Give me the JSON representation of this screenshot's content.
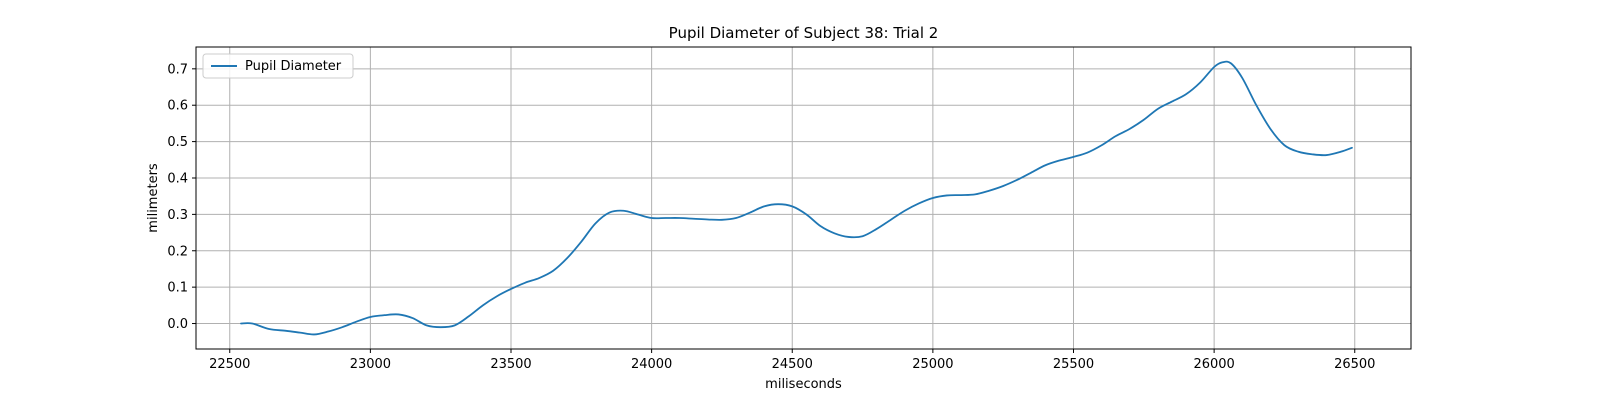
{
  "chart_data": {
    "type": "line",
    "title": "Pupil Diameter of Subject 38: Trial 2",
    "xlabel": "miliseconds",
    "ylabel": "milimeters",
    "xlim": [
      22380,
      26700
    ],
    "ylim": [
      -0.07,
      0.76
    ],
    "xticks": [
      22500,
      23000,
      23500,
      24000,
      24500,
      25000,
      25500,
      26000,
      26500
    ],
    "yticks": [
      0.0,
      0.1,
      0.2,
      0.3,
      0.4,
      0.5,
      0.6,
      0.7
    ],
    "grid": true,
    "legend_position": "top-left",
    "series": [
      {
        "name": "Pupil Diameter",
        "color": "#1f77b4",
        "x": [
          22540,
          22580,
          22640,
          22700,
          22750,
          22800,
          22850,
          22900,
          22950,
          23000,
          23050,
          23100,
          23150,
          23200,
          23250,
          23300,
          23350,
          23400,
          23450,
          23500,
          23550,
          23600,
          23650,
          23700,
          23750,
          23800,
          23850,
          23900,
          23950,
          24000,
          24050,
          24100,
          24150,
          24200,
          24250,
          24300,
          24350,
          24400,
          24450,
          24500,
          24550,
          24600,
          24650,
          24700,
          24750,
          24800,
          24850,
          24900,
          24950,
          25000,
          25050,
          25100,
          25150,
          25200,
          25250,
          25300,
          25350,
          25400,
          25450,
          25500,
          25550,
          25600,
          25650,
          25700,
          25750,
          25800,
          25850,
          25900,
          25950,
          26000,
          26030,
          26060,
          26100,
          26150,
          26200,
          26250,
          26300,
          26350,
          26400,
          26450,
          26490
        ],
        "y": [
          0.0,
          0.0,
          -0.015,
          -0.02,
          -0.025,
          -0.03,
          -0.022,
          -0.01,
          0.005,
          0.018,
          0.023,
          0.025,
          0.015,
          -0.005,
          -0.01,
          -0.005,
          0.02,
          0.05,
          0.075,
          0.095,
          0.112,
          0.125,
          0.145,
          0.18,
          0.225,
          0.275,
          0.305,
          0.31,
          0.3,
          0.29,
          0.29,
          0.29,
          0.288,
          0.286,
          0.285,
          0.29,
          0.305,
          0.322,
          0.328,
          0.322,
          0.3,
          0.268,
          0.248,
          0.238,
          0.24,
          0.26,
          0.285,
          0.31,
          0.33,
          0.345,
          0.352,
          0.353,
          0.355,
          0.365,
          0.378,
          0.395,
          0.415,
          0.435,
          0.448,
          0.458,
          0.47,
          0.49,
          0.515,
          0.535,
          0.56,
          0.59,
          0.61,
          0.63,
          0.662,
          0.705,
          0.718,
          0.715,
          0.675,
          0.6,
          0.535,
          0.49,
          0.472,
          0.465,
          0.463,
          0.472,
          0.483
        ]
      }
    ]
  }
}
